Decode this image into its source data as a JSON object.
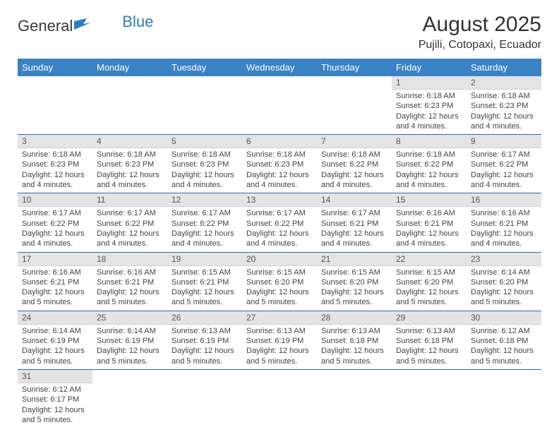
{
  "logo": {
    "word1": "General",
    "word2": "Blue"
  },
  "title": "August 2025",
  "location": "Pujili, Cotopaxi, Ecuador",
  "colors": {
    "header_bg": "#3a82c4",
    "header_text": "#ffffff",
    "daynum_bg": "#e4e4e4",
    "row_border": "#2f6aa8",
    "logo_blue": "#2f7bbf"
  },
  "day_headers": [
    "Sunday",
    "Monday",
    "Tuesday",
    "Wednesday",
    "Thursday",
    "Friday",
    "Saturday"
  ],
  "weeks": [
    [
      null,
      null,
      null,
      null,
      null,
      {
        "n": "1",
        "sr": "6:18 AM",
        "ss": "6:23 PM",
        "dl": "12 hours and 4 minutes."
      },
      {
        "n": "2",
        "sr": "6:18 AM",
        "ss": "6:23 PM",
        "dl": "12 hours and 4 minutes."
      }
    ],
    [
      {
        "n": "3",
        "sr": "6:18 AM",
        "ss": "6:23 PM",
        "dl": "12 hours and 4 minutes."
      },
      {
        "n": "4",
        "sr": "6:18 AM",
        "ss": "6:23 PM",
        "dl": "12 hours and 4 minutes."
      },
      {
        "n": "5",
        "sr": "6:18 AM",
        "ss": "6:23 PM",
        "dl": "12 hours and 4 minutes."
      },
      {
        "n": "6",
        "sr": "6:18 AM",
        "ss": "6:23 PM",
        "dl": "12 hours and 4 minutes."
      },
      {
        "n": "7",
        "sr": "6:18 AM",
        "ss": "6:22 PM",
        "dl": "12 hours and 4 minutes."
      },
      {
        "n": "8",
        "sr": "6:18 AM",
        "ss": "6:22 PM",
        "dl": "12 hours and 4 minutes."
      },
      {
        "n": "9",
        "sr": "6:17 AM",
        "ss": "6:22 PM",
        "dl": "12 hours and 4 minutes."
      }
    ],
    [
      {
        "n": "10",
        "sr": "6:17 AM",
        "ss": "6:22 PM",
        "dl": "12 hours and 4 minutes."
      },
      {
        "n": "11",
        "sr": "6:17 AM",
        "ss": "6:22 PM",
        "dl": "12 hours and 4 minutes."
      },
      {
        "n": "12",
        "sr": "6:17 AM",
        "ss": "6:22 PM",
        "dl": "12 hours and 4 minutes."
      },
      {
        "n": "13",
        "sr": "6:17 AM",
        "ss": "6:22 PM",
        "dl": "12 hours and 4 minutes."
      },
      {
        "n": "14",
        "sr": "6:17 AM",
        "ss": "6:21 PM",
        "dl": "12 hours and 4 minutes."
      },
      {
        "n": "15",
        "sr": "6:16 AM",
        "ss": "6:21 PM",
        "dl": "12 hours and 4 minutes."
      },
      {
        "n": "16",
        "sr": "6:16 AM",
        "ss": "6:21 PM",
        "dl": "12 hours and 4 minutes."
      }
    ],
    [
      {
        "n": "17",
        "sr": "6:16 AM",
        "ss": "6:21 PM",
        "dl": "12 hours and 5 minutes."
      },
      {
        "n": "18",
        "sr": "6:16 AM",
        "ss": "6:21 PM",
        "dl": "12 hours and 5 minutes."
      },
      {
        "n": "19",
        "sr": "6:15 AM",
        "ss": "6:21 PM",
        "dl": "12 hours and 5 minutes."
      },
      {
        "n": "20",
        "sr": "6:15 AM",
        "ss": "6:20 PM",
        "dl": "12 hours and 5 minutes."
      },
      {
        "n": "21",
        "sr": "6:15 AM",
        "ss": "6:20 PM",
        "dl": "12 hours and 5 minutes."
      },
      {
        "n": "22",
        "sr": "6:15 AM",
        "ss": "6:20 PM",
        "dl": "12 hours and 5 minutes."
      },
      {
        "n": "23",
        "sr": "6:14 AM",
        "ss": "6:20 PM",
        "dl": "12 hours and 5 minutes."
      }
    ],
    [
      {
        "n": "24",
        "sr": "6:14 AM",
        "ss": "6:19 PM",
        "dl": "12 hours and 5 minutes."
      },
      {
        "n": "25",
        "sr": "6:14 AM",
        "ss": "6:19 PM",
        "dl": "12 hours and 5 minutes."
      },
      {
        "n": "26",
        "sr": "6:13 AM",
        "ss": "6:19 PM",
        "dl": "12 hours and 5 minutes."
      },
      {
        "n": "27",
        "sr": "6:13 AM",
        "ss": "6:19 PM",
        "dl": "12 hours and 5 minutes."
      },
      {
        "n": "28",
        "sr": "6:13 AM",
        "ss": "6:18 PM",
        "dl": "12 hours and 5 minutes."
      },
      {
        "n": "29",
        "sr": "6:13 AM",
        "ss": "6:18 PM",
        "dl": "12 hours and 5 minutes."
      },
      {
        "n": "30",
        "sr": "6:12 AM",
        "ss": "6:18 PM",
        "dl": "12 hours and 5 minutes."
      }
    ],
    [
      {
        "n": "31",
        "sr": "6:12 AM",
        "ss": "6:17 PM",
        "dl": "12 hours and 5 minutes."
      },
      null,
      null,
      null,
      null,
      null,
      null
    ]
  ],
  "labels": {
    "sunrise": "Sunrise: ",
    "sunset": "Sunset: ",
    "daylight": "Daylight: "
  }
}
